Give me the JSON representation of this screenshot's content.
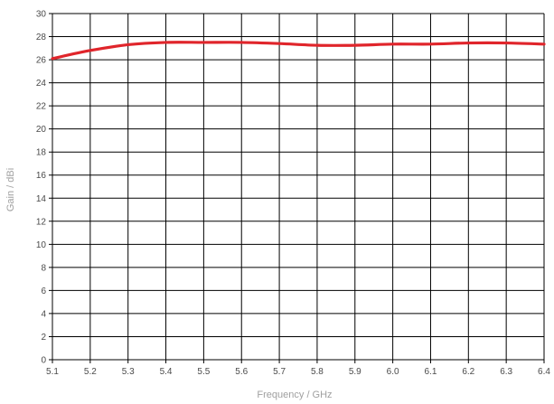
{
  "chart_data": {
    "type": "line",
    "title": "",
    "xlabel": "Frequency / GHz",
    "ylabel": "Gain / dBi",
    "xlim": [
      5.1,
      6.4
    ],
    "ylim": [
      0,
      30
    ],
    "x_ticks": [
      "5.1",
      "5.2",
      "5.3",
      "5.4",
      "5.5",
      "5.6",
      "5.7",
      "5.8",
      "5.9",
      "6.0",
      "6.1",
      "6.2",
      "6.3",
      "6.4"
    ],
    "y_ticks": [
      "0",
      "2",
      "4",
      "6",
      "8",
      "10",
      "12",
      "14",
      "16",
      "18",
      "20",
      "22",
      "24",
      "26",
      "28",
      "30"
    ],
    "grid": true,
    "legend": "none",
    "colors": {
      "series": "#e0252b",
      "grid": "#000000",
      "tick_text": "#4a4a4a",
      "axis_title": "#a0a0a0"
    },
    "series": [
      {
        "x": [
          5.1,
          5.2,
          5.3,
          5.4,
          5.5,
          5.6,
          5.7,
          5.8,
          5.9,
          6.0,
          6.1,
          6.2,
          6.3,
          6.4
        ],
        "values": [
          26.1,
          26.8,
          27.3,
          27.5,
          27.5,
          27.5,
          27.4,
          27.25,
          27.25,
          27.35,
          27.35,
          27.45,
          27.45,
          27.35
        ]
      }
    ]
  }
}
